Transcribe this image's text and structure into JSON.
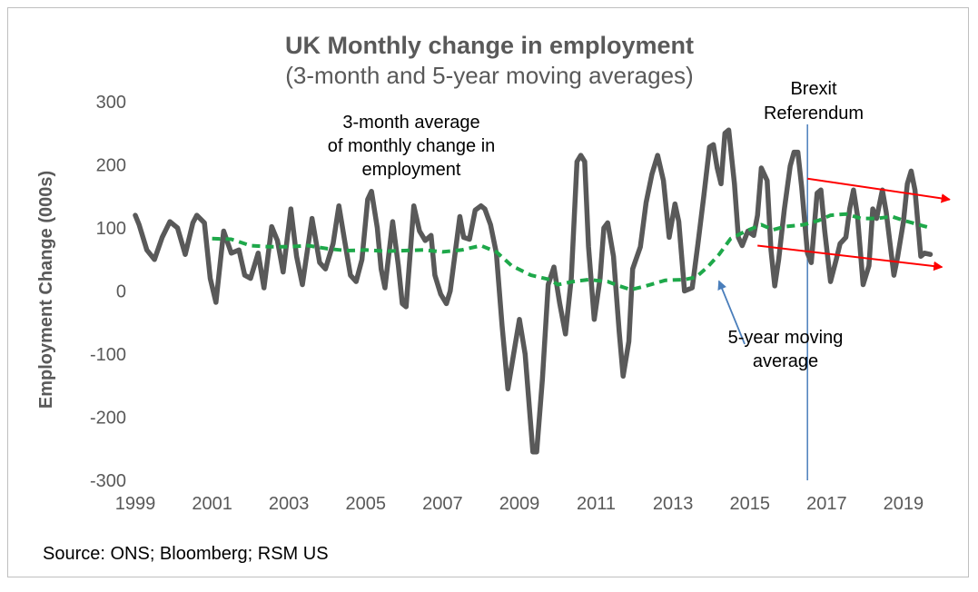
{
  "chart_data": {
    "type": "line",
    "title": "UK Monthly change in employment",
    "subtitle": "(3-month and 5-year moving averages)",
    "xlabel": "",
    "ylabel": "Employment Change (000s)",
    "ylim": [
      -300,
      300
    ],
    "xlim": [
      1999,
      2019.9
    ],
    "x_ticks": [
      "1999",
      "2001",
      "2003",
      "2005",
      "2007",
      "2009",
      "2011",
      "2013",
      "2015",
      "2017",
      "2019"
    ],
    "y_ticks": [
      "300",
      "200",
      "100",
      "0",
      "-100",
      "-200",
      "-300"
    ],
    "series": [
      {
        "name": "3-month average of monthly change in employment",
        "color": "#595959",
        "style": "solid",
        "points": [
          [
            1999.0,
            120
          ],
          [
            1999.1,
            105
          ],
          [
            1999.3,
            65
          ],
          [
            1999.5,
            50
          ],
          [
            1999.7,
            85
          ],
          [
            1999.9,
            110
          ],
          [
            2000.1,
            100
          ],
          [
            2000.3,
            58
          ],
          [
            2000.5,
            108
          ],
          [
            2000.6,
            120
          ],
          [
            2000.8,
            108
          ],
          [
            2000.95,
            20
          ],
          [
            2001.1,
            -18
          ],
          [
            2001.3,
            95
          ],
          [
            2001.5,
            60
          ],
          [
            2001.7,
            65
          ],
          [
            2001.85,
            25
          ],
          [
            2002.0,
            20
          ],
          [
            2002.2,
            60
          ],
          [
            2002.35,
            5
          ],
          [
            2002.55,
            102
          ],
          [
            2002.7,
            80
          ],
          [
            2002.85,
            30
          ],
          [
            2003.05,
            130
          ],
          [
            2003.2,
            55
          ],
          [
            2003.35,
            10
          ],
          [
            2003.6,
            115
          ],
          [
            2003.8,
            45
          ],
          [
            2003.95,
            35
          ],
          [
            2004.15,
            75
          ],
          [
            2004.3,
            135
          ],
          [
            2004.45,
            80
          ],
          [
            2004.6,
            25
          ],
          [
            2004.75,
            15
          ],
          [
            2004.9,
            50
          ],
          [
            2005.05,
            145
          ],
          [
            2005.15,
            158
          ],
          [
            2005.3,
            100
          ],
          [
            2005.4,
            35
          ],
          [
            2005.5,
            5
          ],
          [
            2005.7,
            110
          ],
          [
            2005.85,
            40
          ],
          [
            2005.95,
            -20
          ],
          [
            2006.05,
            -25
          ],
          [
            2006.25,
            135
          ],
          [
            2006.4,
            95
          ],
          [
            2006.55,
            80
          ],
          [
            2006.7,
            88
          ],
          [
            2006.8,
            25
          ],
          [
            2006.95,
            -5
          ],
          [
            2007.1,
            -20
          ],
          [
            2007.2,
            0
          ],
          [
            2007.45,
            118
          ],
          [
            2007.55,
            85
          ],
          [
            2007.7,
            82
          ],
          [
            2007.85,
            128
          ],
          [
            2008.0,
            135
          ],
          [
            2008.1,
            130
          ],
          [
            2008.25,
            105
          ],
          [
            2008.4,
            60
          ],
          [
            2008.55,
            -55
          ],
          [
            2008.7,
            -155
          ],
          [
            2008.85,
            -100
          ],
          [
            2009.0,
            -45
          ],
          [
            2009.15,
            -100
          ],
          [
            2009.35,
            -255
          ],
          [
            2009.45,
            -255
          ],
          [
            2009.6,
            -140
          ],
          [
            2009.75,
            10
          ],
          [
            2009.9,
            38
          ],
          [
            2010.05,
            -20
          ],
          [
            2010.2,
            -68
          ],
          [
            2010.35,
            20
          ],
          [
            2010.5,
            205
          ],
          [
            2010.6,
            215
          ],
          [
            2010.7,
            205
          ],
          [
            2010.8,
            70
          ],
          [
            2010.95,
            -45
          ],
          [
            2011.1,
            20
          ],
          [
            2011.2,
            100
          ],
          [
            2011.3,
            108
          ],
          [
            2011.45,
            55
          ],
          [
            2011.6,
            -65
          ],
          [
            2011.7,
            -135
          ],
          [
            2011.85,
            -80
          ],
          [
            2011.95,
            35
          ],
          [
            2012.15,
            70
          ],
          [
            2012.3,
            140
          ],
          [
            2012.45,
            185
          ],
          [
            2012.6,
            215
          ],
          [
            2012.75,
            175
          ],
          [
            2012.9,
            85
          ],
          [
            2013.05,
            138
          ],
          [
            2013.15,
            110
          ],
          [
            2013.3,
            0
          ],
          [
            2013.5,
            5
          ],
          [
            2013.65,
            75
          ],
          [
            2013.8,
            150
          ],
          [
            2013.95,
            228
          ],
          [
            2014.05,
            232
          ],
          [
            2014.15,
            195
          ],
          [
            2014.25,
            170
          ],
          [
            2014.35,
            250
          ],
          [
            2014.45,
            255
          ],
          [
            2014.6,
            170
          ],
          [
            2014.7,
            85
          ],
          [
            2014.8,
            72
          ],
          [
            2014.95,
            95
          ],
          [
            2015.1,
            88
          ],
          [
            2015.2,
            120
          ],
          [
            2015.3,
            195
          ],
          [
            2015.45,
            175
          ],
          [
            2015.55,
            65
          ],
          [
            2015.65,
            8
          ],
          [
            2015.75,
            50
          ],
          [
            2015.9,
            130
          ],
          [
            2016.05,
            198
          ],
          [
            2016.15,
            220
          ],
          [
            2016.25,
            220
          ],
          [
            2016.35,
            165
          ],
          [
            2016.5,
            60
          ],
          [
            2016.6,
            45
          ],
          [
            2016.75,
            155
          ],
          [
            2016.85,
            160
          ],
          [
            2016.95,
            95
          ],
          [
            2017.1,
            15
          ],
          [
            2017.25,
            50
          ],
          [
            2017.35,
            75
          ],
          [
            2017.5,
            85
          ],
          [
            2017.6,
            130
          ],
          [
            2017.7,
            160
          ],
          [
            2017.8,
            120
          ],
          [
            2017.95,
            10
          ],
          [
            2018.1,
            40
          ],
          [
            2018.2,
            130
          ],
          [
            2018.3,
            115
          ],
          [
            2018.45,
            160
          ],
          [
            2018.55,
            125
          ],
          [
            2018.75,
            25
          ],
          [
            2018.85,
            55
          ],
          [
            2019.0,
            110
          ],
          [
            2019.1,
            170
          ],
          [
            2019.2,
            190
          ],
          [
            2019.3,
            160
          ],
          [
            2019.45,
            55
          ],
          [
            2019.55,
            60
          ],
          [
            2019.7,
            58
          ]
        ]
      },
      {
        "name": "5-year moving average",
        "color": "#1ea84a",
        "style": "dashed",
        "points": [
          [
            2001.0,
            83
          ],
          [
            2001.5,
            82
          ],
          [
            2002.0,
            72
          ],
          [
            2002.5,
            70
          ],
          [
            2003.0,
            70
          ],
          [
            2003.5,
            72
          ],
          [
            2004.0,
            67
          ],
          [
            2004.5,
            64
          ],
          [
            2005.0,
            65
          ],
          [
            2005.5,
            63
          ],
          [
            2006.0,
            64
          ],
          [
            2006.5,
            65
          ],
          [
            2007.0,
            62
          ],
          [
            2007.5,
            65
          ],
          [
            2008.0,
            72
          ],
          [
            2008.4,
            62
          ],
          [
            2008.8,
            40
          ],
          [
            2009.3,
            25
          ],
          [
            2009.8,
            18
          ],
          [
            2010.0,
            10
          ],
          [
            2010.4,
            15
          ],
          [
            2010.8,
            18
          ],
          [
            2011.3,
            15
          ],
          [
            2011.6,
            8
          ],
          [
            2011.9,
            2
          ],
          [
            2012.3,
            8
          ],
          [
            2012.8,
            17
          ],
          [
            2013.3,
            18
          ],
          [
            2013.6,
            22
          ],
          [
            2013.9,
            38
          ],
          [
            2014.2,
            58
          ],
          [
            2014.5,
            83
          ],
          [
            2014.9,
            95
          ],
          [
            2015.3,
            105
          ],
          [
            2015.6,
            97
          ],
          [
            2015.9,
            102
          ],
          [
            2016.4,
            105
          ],
          [
            2016.8,
            112
          ],
          [
            2017.1,
            120
          ],
          [
            2017.5,
            122
          ],
          [
            2017.9,
            115
          ],
          [
            2018.3,
            115
          ],
          [
            2018.7,
            118
          ],
          [
            2019.0,
            112
          ],
          [
            2019.4,
            105
          ],
          [
            2019.7,
            100
          ]
        ]
      }
    ],
    "annotations": {
      "brexit_label_line1": "Brexit",
      "brexit_label_line2": "Referendum",
      "brexit_x": 2016.5,
      "three_month_label_line1": "3-month average",
      "three_month_label_line2": "of monthly change in",
      "three_month_label_line3": "employment",
      "five_year_label_line1": "5-year moving",
      "five_year_label_line2": "average",
      "trend_arrow_upper": [
        [
          2016.5,
          178
        ],
        [
          2020.2,
          145
        ]
      ],
      "trend_arrow_lower": [
        [
          2015.2,
          72
        ],
        [
          2020.0,
          38
        ]
      ],
      "pointer_arrow": [
        [
          2013.4,
          -15
        ],
        [
          2015.0,
          7
        ]
      ],
      "trend_color": "#ff0000",
      "pointer_color": "#4a7ebb",
      "brexit_line_color": "#4a7ebb"
    },
    "source": "Source: ONS; Bloomberg; RSM US"
  }
}
